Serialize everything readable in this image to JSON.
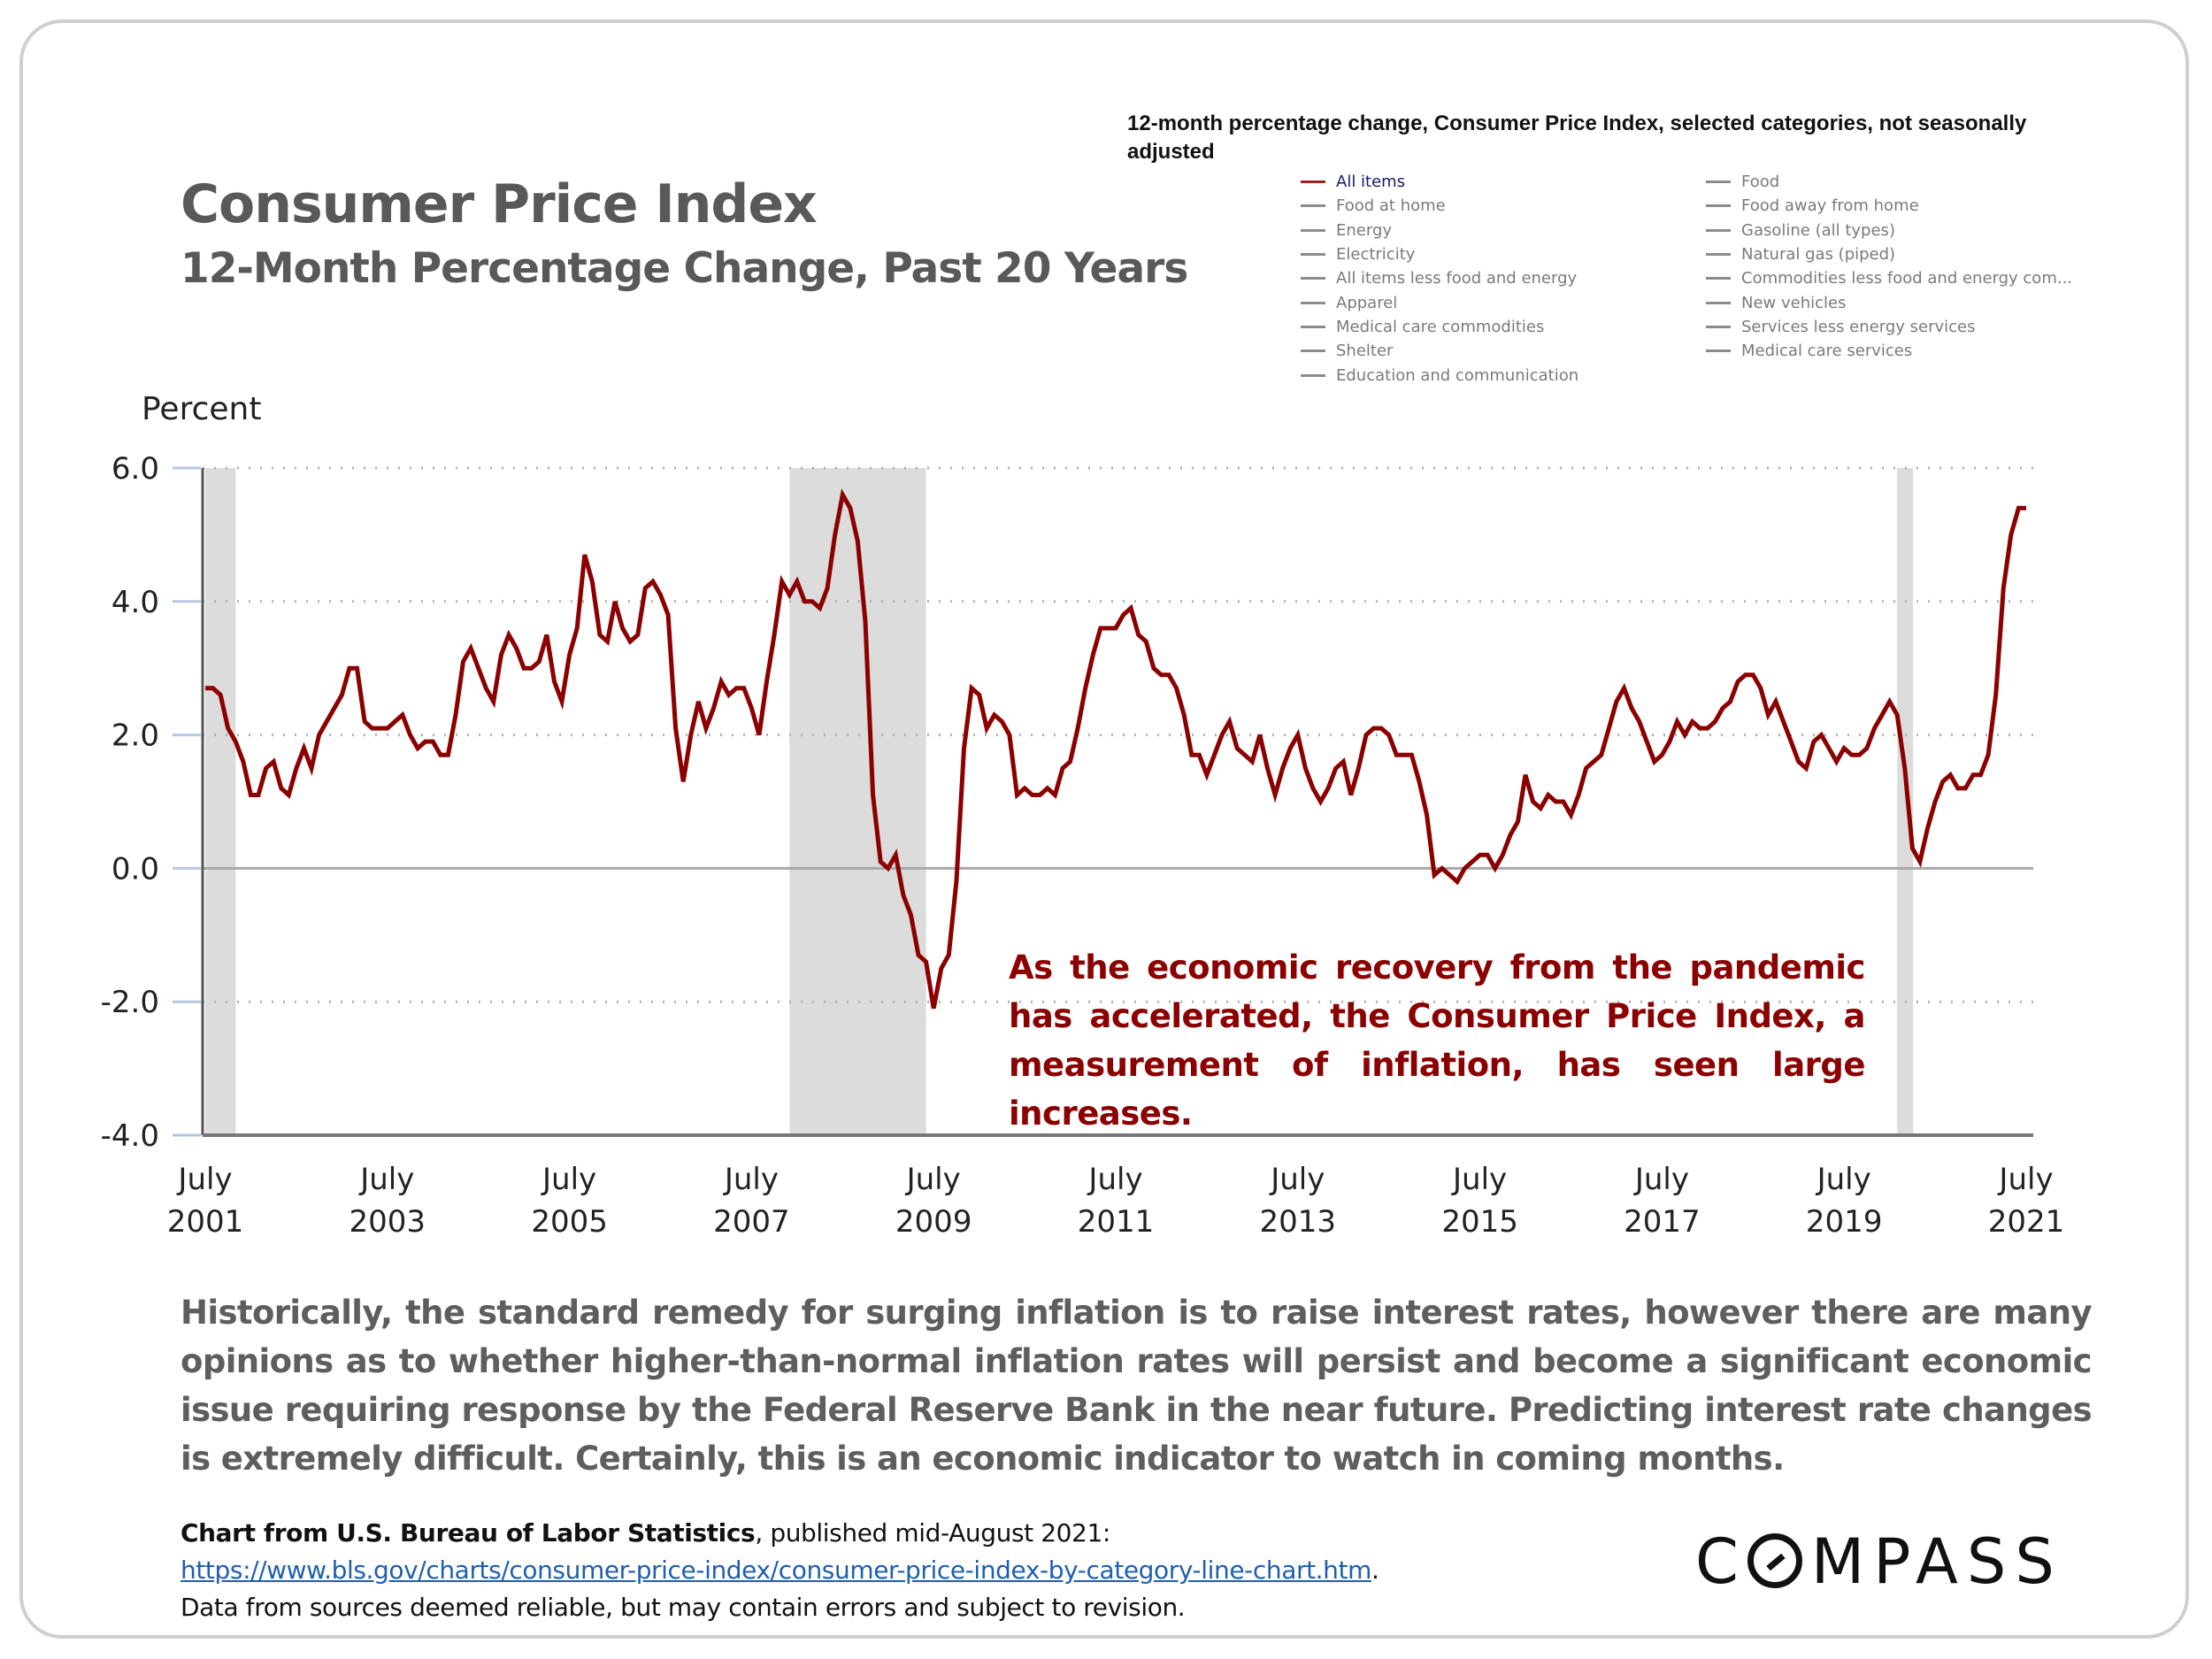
{
  "header": {
    "title": "Consumer Price Index",
    "subtitle": "12-Month Percentage Change, Past 20 Years"
  },
  "bls_chart": {
    "title": "12-month percentage change, Consumer Price Index, selected categories, not seasonally adjusted",
    "legend_left": [
      "All items",
      "Food at home",
      "Energy",
      "Electricity",
      "All items less food and energy",
      "Apparel",
      "Medical care commodities",
      "Shelter",
      "Education and communication"
    ],
    "legend_right": [
      "Food",
      "Food away from home",
      "Gasoline (all types)",
      "Natural gas (piped)",
      "Commodities less food and energy com...",
      "New vehicles",
      "Services less energy services",
      "Medical care services"
    ],
    "active_series": "All items"
  },
  "annotation": "As the economic recovery from the pandemic has accelerated, the Consumer Price Index, a measurement of inflation, has seen large increases.",
  "body_text": "Historically, the standard remedy for surging inflation is to raise interest rates, however there are many opinions as to whether higher-than-normal inflation rates will persist and become a significant economic issue requiring response by the Federal Reserve Bank in the near future. Predicting interest rate changes is extremely difficult. Certainly, this is an economic indicator to watch in coming months.",
  "source": {
    "bold": "Chart from U.S. Bureau of Labor Statistics",
    "rest": ", published mid-August 2021:",
    "link": "https://www.bls.gov/charts/consumer-price-index/consumer-price-index-by-category-line-chart.htm",
    "link_suffix": ".",
    "disclaimer": "Data from sources deemed reliable, but may contain errors and subject to revision."
  },
  "logo": {
    "text_after_o": "MPASS",
    "first": "C"
  },
  "colors": {
    "series": "#8b0000",
    "recession": "#dcdcdc",
    "grid": "#b0b0b0",
    "annotation": "#8b0000",
    "body": "#5e5e5e",
    "link": "#1f5fae"
  },
  "chart_data": {
    "type": "line",
    "title": "Consumer Price Index, 12-Month Percentage Change, Past 20 Years",
    "xlabel": "",
    "ylabel": "Percent",
    "ylim": [
      -4.0,
      6.0
    ],
    "yticks": [
      "6.0",
      "4.0",
      "2.0",
      "0.0",
      "-2.0",
      "-4.0"
    ],
    "ytick_values": [
      6,
      4,
      2,
      0,
      -2,
      -4
    ],
    "xtick_labels": [
      [
        "July",
        "2001"
      ],
      [
        "July",
        "2003"
      ],
      [
        "July",
        "2005"
      ],
      [
        "July",
        "2007"
      ],
      [
        "July",
        "2009"
      ],
      [
        "July",
        "2011"
      ],
      [
        "July",
        "2013"
      ],
      [
        "July",
        "2015"
      ],
      [
        "July",
        "2017"
      ],
      [
        "July",
        "2019"
      ],
      [
        "July",
        "2021"
      ]
    ],
    "xtick_month_index": [
      0,
      24,
      48,
      72,
      96,
      120,
      144,
      168,
      192,
      216,
      240
    ],
    "x_start": "July 2001",
    "x_end": "July 2021",
    "grid": true,
    "legend": "top-right",
    "recessions": [
      {
        "label": "2001 recession",
        "start_index": 0,
        "end_index": 4
      },
      {
        "label": "2007-2009 recession",
        "start_index": 77,
        "end_index": 95
      },
      {
        "label": "2020 recession",
        "start_index": 223,
        "end_index": 225
      }
    ],
    "series": [
      {
        "name": "All items",
        "values": [
          2.7,
          2.7,
          2.6,
          2.1,
          1.9,
          1.6,
          1.1,
          1.1,
          1.5,
          1.6,
          1.2,
          1.1,
          1.5,
          1.8,
          1.5,
          2.0,
          2.2,
          2.4,
          2.6,
          3.0,
          3.0,
          2.2,
          2.1,
          2.1,
          2.1,
          2.2,
          2.3,
          2.0,
          1.8,
          1.9,
          1.9,
          1.7,
          1.7,
          2.3,
          3.1,
          3.3,
          3.0,
          2.7,
          2.5,
          3.2,
          3.5,
          3.3,
          3.0,
          3.0,
          3.1,
          3.5,
          2.8,
          2.5,
          3.2,
          3.6,
          4.7,
          4.3,
          3.5,
          3.4,
          4.0,
          3.6,
          3.4,
          3.5,
          4.2,
          4.3,
          4.1,
          3.8,
          2.1,
          1.3,
          2.0,
          2.5,
          2.1,
          2.4,
          2.8,
          2.6,
          2.7,
          2.7,
          2.4,
          2.0,
          2.8,
          3.5,
          4.3,
          4.1,
          4.3,
          4.0,
          4.0,
          3.9,
          4.2,
          5.0,
          5.6,
          5.4,
          4.9,
          3.7,
          1.1,
          0.1,
          0.0,
          0.2,
          -0.4,
          -0.7,
          -1.3,
          -1.4,
          -2.1,
          -1.5,
          -1.3,
          -0.2,
          1.8,
          2.7,
          2.6,
          2.1,
          2.3,
          2.2,
          2.0,
          1.1,
          1.2,
          1.1,
          1.1,
          1.2,
          1.1,
          1.5,
          1.6,
          2.1,
          2.7,
          3.2,
          3.6,
          3.6,
          3.6,
          3.8,
          3.9,
          3.5,
          3.4,
          3.0,
          2.9,
          2.9,
          2.7,
          2.3,
          1.7,
          1.7,
          1.4,
          1.7,
          2.0,
          2.2,
          1.8,
          1.7,
          1.6,
          2.0,
          1.5,
          1.1,
          1.5,
          1.8,
          2.0,
          1.5,
          1.2,
          1.0,
          1.2,
          1.5,
          1.6,
          1.1,
          1.5,
          2.0,
          2.1,
          2.1,
          2.0,
          1.7,
          1.7,
          1.7,
          1.3,
          0.8,
          -0.1,
          0.0,
          -0.1,
          -0.2,
          0.0,
          0.1,
          0.2,
          0.2,
          0.0,
          0.2,
          0.5,
          0.7,
          1.4,
          1.0,
          0.9,
          1.1,
          1.0,
          1.0,
          0.8,
          1.1,
          1.5,
          1.6,
          1.7,
          2.1,
          2.5,
          2.7,
          2.4,
          2.2,
          1.9,
          1.6,
          1.7,
          1.9,
          2.2,
          2.0,
          2.2,
          2.1,
          2.1,
          2.2,
          2.4,
          2.5,
          2.8,
          2.9,
          2.9,
          2.7,
          2.3,
          2.5,
          2.2,
          1.9,
          1.6,
          1.5,
          1.9,
          2.0,
          1.8,
          1.6,
          1.8,
          1.7,
          1.7,
          1.8,
          2.1,
          2.3,
          2.5,
          2.3,
          1.5,
          0.3,
          0.1,
          0.6,
          1.0,
          1.3,
          1.4,
          1.2,
          1.2,
          1.4,
          1.4,
          1.7,
          2.6,
          4.2,
          5.0,
          5.4,
          5.4
        ]
      }
    ]
  }
}
